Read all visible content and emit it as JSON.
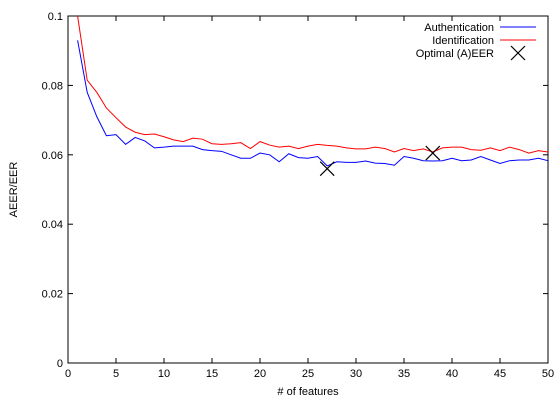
{
  "chart_data": {
    "type": "line",
    "title": "",
    "xlabel": "# of features",
    "ylabel": "AEER/EER",
    "xlim": [
      0,
      50
    ],
    "ylim": [
      0,
      0.1
    ],
    "x_ticks": [
      0,
      5,
      10,
      15,
      20,
      25,
      30,
      35,
      40,
      45,
      50
    ],
    "y_ticks": [
      0,
      0.02,
      0.04,
      0.06,
      0.08,
      0.1
    ],
    "y_tick_labels": [
      "0",
      "0.02",
      "0.04",
      "0.06",
      "0.08",
      "0.1"
    ],
    "grid": false,
    "legend_position": "top-right",
    "series": [
      {
        "name": "Authentication",
        "color": "#0000ff",
        "x": [
          1,
          2,
          3,
          4,
          5,
          6,
          7,
          8,
          9,
          10,
          11,
          12,
          13,
          14,
          15,
          16,
          17,
          18,
          19,
          20,
          21,
          22,
          23,
          24,
          25,
          26,
          27,
          28,
          29,
          30,
          31,
          32,
          33,
          34,
          35,
          36,
          37,
          38,
          39,
          40,
          41,
          42,
          43,
          44,
          45,
          46,
          47,
          48,
          49,
          50
        ],
        "values": [
          0.093,
          0.078,
          0.071,
          0.0655,
          0.0658,
          0.063,
          0.065,
          0.064,
          0.062,
          0.0622,
          0.0625,
          0.0625,
          0.0625,
          0.0615,
          0.0612,
          0.061,
          0.06,
          0.059,
          0.059,
          0.0605,
          0.06,
          0.058,
          0.0603,
          0.0592,
          0.059,
          0.0595,
          0.0568,
          0.058,
          0.0578,
          0.0578,
          0.0582,
          0.0576,
          0.0575,
          0.057,
          0.0595,
          0.059,
          0.0583,
          0.0582,
          0.0583,
          0.059,
          0.0583,
          0.0585,
          0.0595,
          0.0585,
          0.0575,
          0.0583,
          0.0585,
          0.0585,
          0.059,
          0.0583
        ]
      },
      {
        "name": "Identification",
        "color": "#ff0000",
        "x": [
          1,
          2,
          3,
          4,
          5,
          6,
          7,
          8,
          9,
          10,
          11,
          12,
          13,
          14,
          15,
          16,
          17,
          18,
          19,
          20,
          21,
          22,
          23,
          24,
          25,
          26,
          27,
          28,
          29,
          30,
          31,
          32,
          33,
          34,
          35,
          36,
          37,
          38,
          39,
          40,
          41,
          42,
          43,
          44,
          45,
          46,
          47,
          48,
          49,
          50
        ],
        "values": [
          0.1,
          0.0815,
          0.078,
          0.0735,
          0.0707,
          0.068,
          0.0665,
          0.0658,
          0.066,
          0.0652,
          0.0643,
          0.0638,
          0.0648,
          0.0645,
          0.0632,
          0.063,
          0.0632,
          0.0635,
          0.0618,
          0.0638,
          0.0628,
          0.0622,
          0.0625,
          0.0618,
          0.0625,
          0.063,
          0.0627,
          0.0625,
          0.062,
          0.0617,
          0.0617,
          0.0622,
          0.0618,
          0.0608,
          0.0618,
          0.0612,
          0.0617,
          0.0608,
          0.062,
          0.0622,
          0.0622,
          0.0615,
          0.0613,
          0.062,
          0.0612,
          0.0622,
          0.0615,
          0.0605,
          0.0612,
          0.0608
        ]
      }
    ],
    "markers": {
      "name": "Optimal (A)EER",
      "color": "#000000",
      "points": [
        {
          "x": 27,
          "y": 0.056
        },
        {
          "x": 38,
          "y": 0.0605
        }
      ]
    }
  }
}
